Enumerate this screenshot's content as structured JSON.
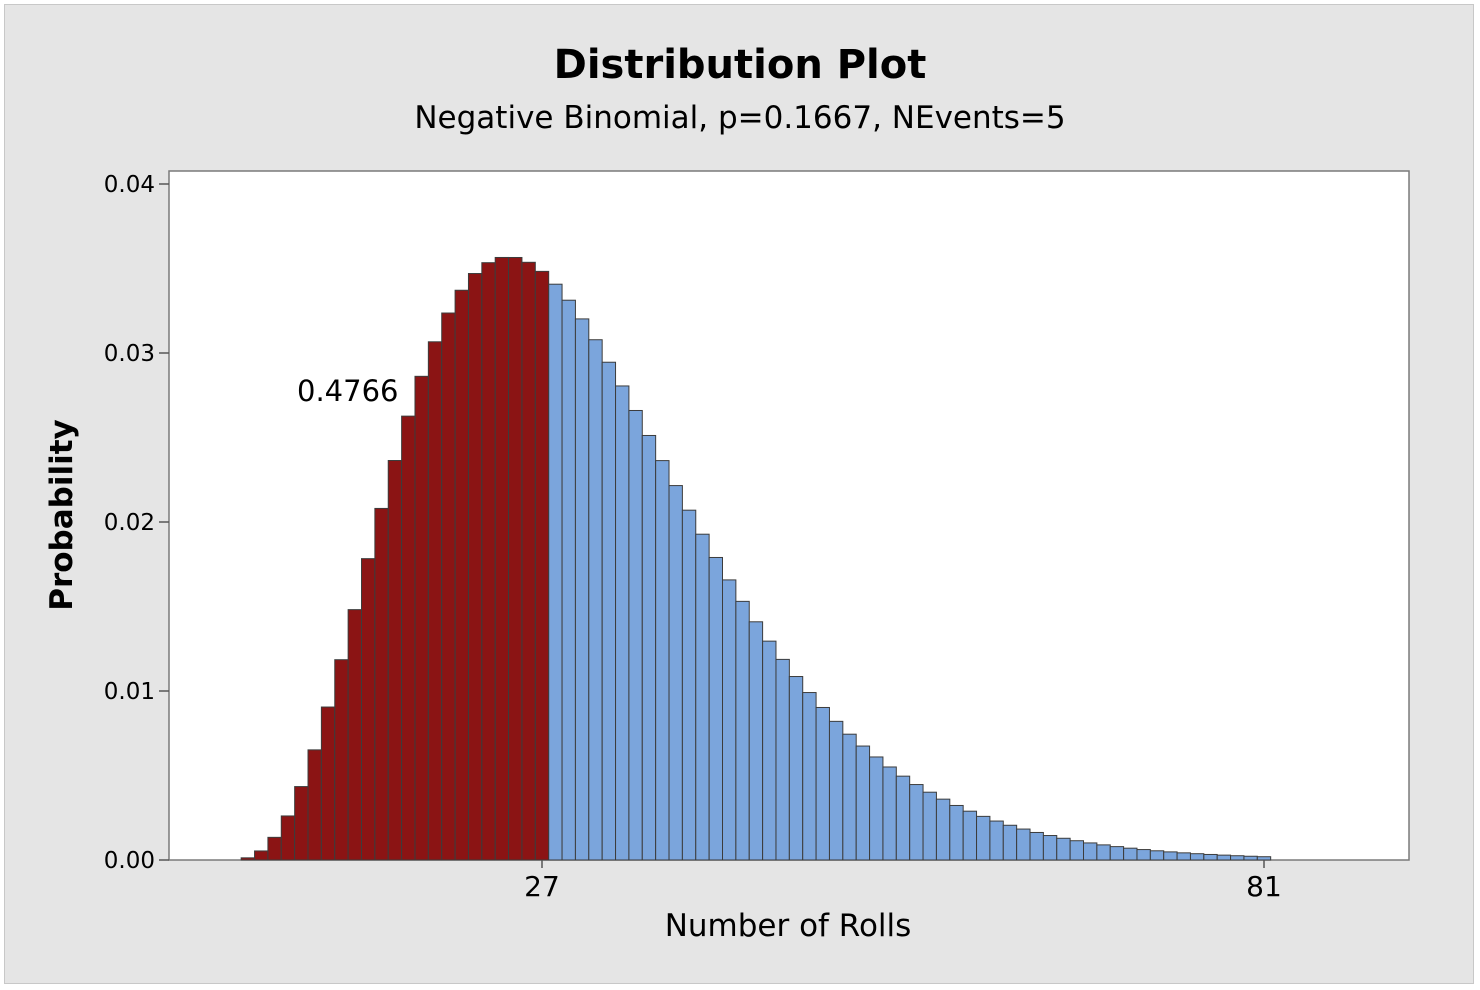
{
  "chart_data": {
    "type": "bar",
    "title": "Distribution Plot",
    "subtitle": "Negative Binomial, p=0.1667, NEvents=5",
    "xlabel": "Number of Rolls",
    "ylabel": "Probability",
    "ylim": [
      0,
      0.04
    ],
    "yticks": [
      "0.00",
      "0.01",
      "0.02",
      "0.03",
      "0.04"
    ],
    "xtick_labels": [
      {
        "value": 27,
        "label": "27"
      },
      {
        "value": 81,
        "label": "81"
      }
    ],
    "distribution": {
      "name": "Negative Binomial",
      "p": 0.1667,
      "events": 5
    },
    "shaded_region": {
      "upper_bound": 27,
      "probability_label": "0.4766",
      "color": "#8b1414"
    },
    "unshaded_color": "#7ba5dc",
    "x_start": 5,
    "x_end": 81
  }
}
